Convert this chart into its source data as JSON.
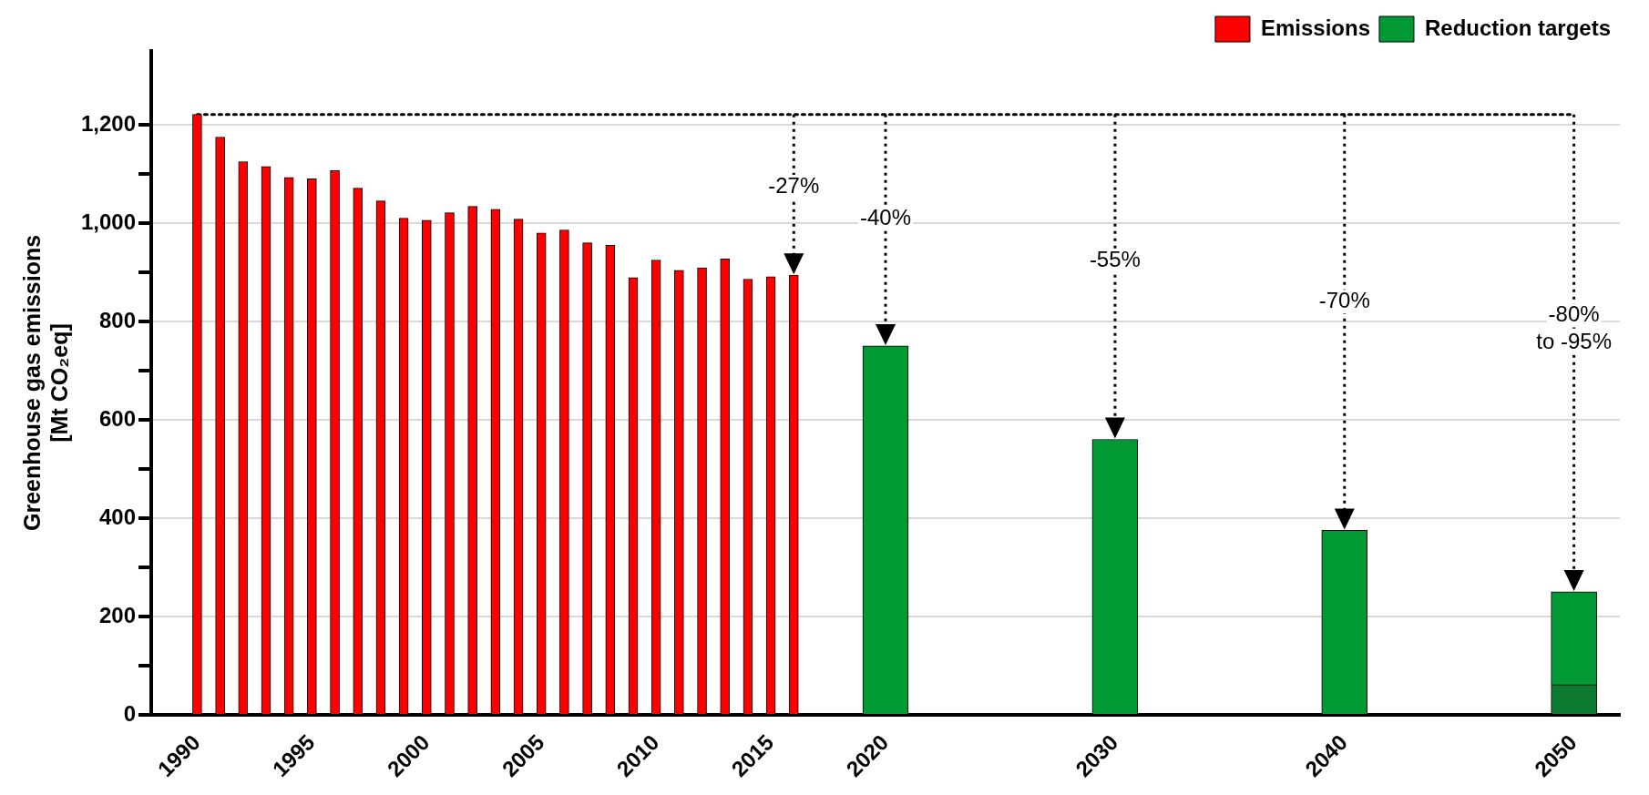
{
  "chart_data": {
    "type": "bar",
    "ylabel": "Greenhouse gas emissions\n[Mt CO₂eq]",
    "series": [
      {
        "name": "Emissions",
        "color": "#ff0000",
        "x": [
          1990,
          1991,
          1992,
          1993,
          1994,
          1995,
          1996,
          1997,
          1998,
          1999,
          2000,
          2001,
          2002,
          2003,
          2004,
          2005,
          2006,
          2007,
          2008,
          2009,
          2010,
          2011,
          2012,
          2013,
          2014,
          2015,
          2016
        ],
        "values": [
          1221,
          1175,
          1125,
          1115,
          1093,
          1090,
          1107,
          1071,
          1045,
          1010,
          1006,
          1021,
          1034,
          1028,
          1008,
          980,
          986,
          960,
          955,
          889,
          925,
          904,
          909,
          927,
          886,
          891,
          894
        ]
      },
      {
        "color": "#0b7a30",
        "x": [
          2050
        ],
        "values": [
          61
        ]
      },
      {
        "name": "Reduction targets",
        "color": "#009933",
        "x": [
          2020,
          2030,
          2040,
          2050
        ],
        "base": [
          0,
          0,
          0,
          61
        ],
        "values": [
          750,
          560,
          375,
          189
        ]
      }
    ],
    "xlim": [
      1988,
      2052
    ],
    "xticks": [
      1990,
      1995,
      2000,
      2005,
      2010,
      2015,
      2020,
      2030,
      2040,
      2050
    ],
    "ylim": [
      0,
      1350
    ],
    "yticks": [
      0,
      {
        "value": 100,
        "label": null
      },
      200,
      {
        "value": 300,
        "label": null
      },
      400,
      {
        "value": 500,
        "label": null
      },
      600,
      {
        "value": 700,
        "label": null
      },
      800,
      {
        "value": 900,
        "label": null
      },
      {
        "value": 1000,
        "label": "1,000"
      },
      {
        "value": 1100,
        "label": null
      },
      {
        "value": 1200,
        "label": "1,200"
      }
    ],
    "grid": "y",
    "legend": "top right",
    "ref_lines": [
      {
        "axis": "y",
        "value": 1221,
        "line_style": "dotted"
      }
    ],
    "annotations": [
      "-27%",
      "-40%",
      "-55%",
      "-70%",
      "-80%\nto -95%"
    ]
  }
}
